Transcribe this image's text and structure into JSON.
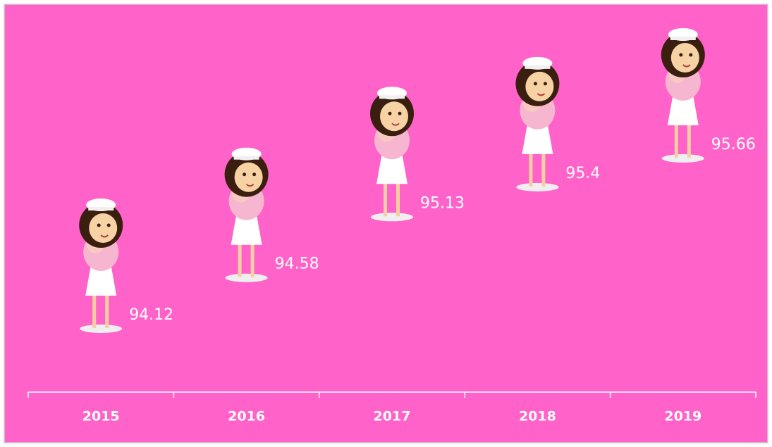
{
  "chart_data": {
    "type": "pictograph",
    "categories": [
      "2015",
      "2016",
      "2017",
      "2018",
      "2019"
    ],
    "values": [
      94.12,
      94.58,
      95.13,
      95.4,
      95.66
    ],
    "background": "#ff62c9"
  }
}
